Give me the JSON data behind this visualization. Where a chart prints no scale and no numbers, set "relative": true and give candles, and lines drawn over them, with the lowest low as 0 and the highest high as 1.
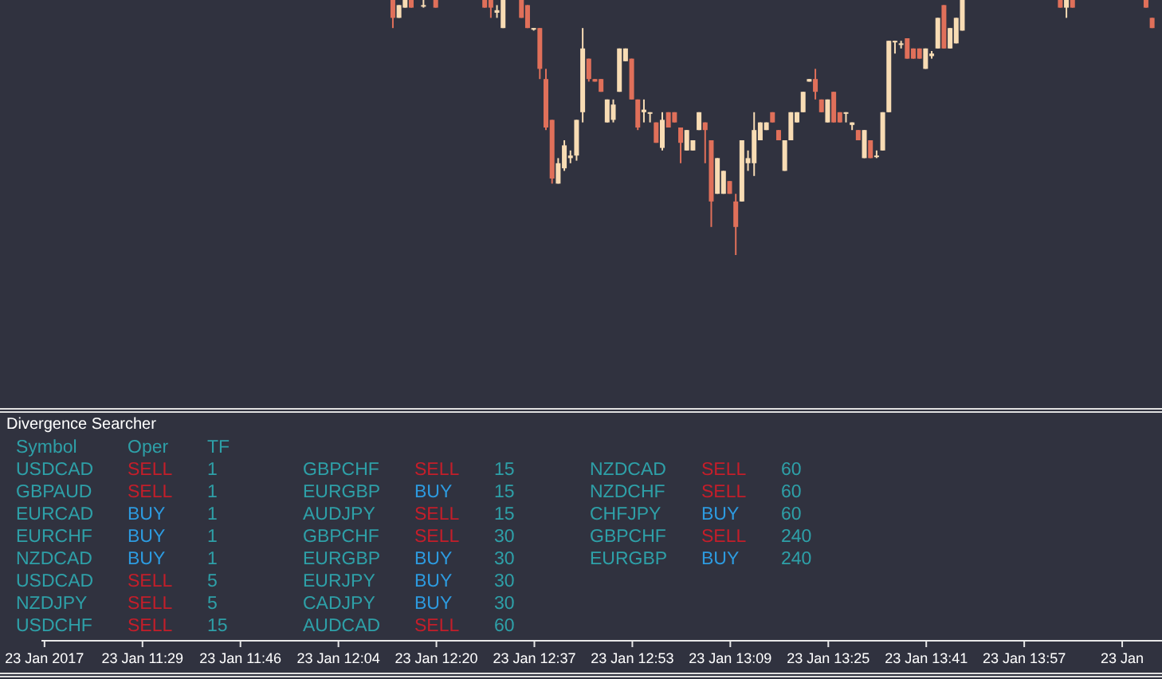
{
  "chart_data": [
    {
      "type": "candlestick",
      "relative": true,
      "categories": [
        "23 Jan 2017",
        null,
        null,
        null,
        null,
        null,
        null,
        null,
        null,
        null,
        null,
        null,
        null,
        null,
        null,
        null,
        "23 Jan 11:29",
        null,
        null,
        null,
        null,
        null,
        null,
        null,
        null,
        null,
        null,
        null,
        null,
        null,
        null,
        null,
        "23 Jan 11:46",
        null,
        null,
        null,
        null,
        null,
        null,
        null,
        null,
        null,
        null,
        null,
        null,
        null,
        null,
        null,
        "23 Jan 12:04",
        null,
        null,
        null,
        null,
        null,
        null,
        null,
        null,
        null,
        null,
        null,
        null,
        null,
        null,
        null,
        "23 Jan 12:20",
        null,
        null,
        null,
        null,
        null,
        null,
        null,
        null,
        null,
        null,
        null,
        null,
        null,
        null,
        null,
        "23 Jan 12:37",
        null,
        null,
        null,
        null,
        null,
        null,
        null,
        null,
        null,
        null,
        null,
        null,
        null,
        null,
        null,
        "23 Jan 12:53",
        null,
        null,
        null,
        null,
        null,
        null,
        null,
        null,
        null,
        null,
        null,
        null,
        null,
        null,
        null,
        "23 Jan 13:09",
        null,
        null,
        null,
        null,
        null,
        null,
        null,
        null,
        null,
        null,
        null,
        null,
        null,
        null,
        null,
        "23 Jan 13:25",
        null,
        null,
        null,
        null,
        null,
        null,
        null,
        null,
        null,
        null,
        null,
        null,
        null,
        null,
        null,
        "23 Jan 13:41",
        null,
        null,
        null,
        null,
        null,
        null,
        null,
        null,
        null,
        null,
        null,
        null,
        null,
        null,
        null,
        "23 Jan 13:57",
        null,
        null,
        null,
        null,
        null,
        null,
        null,
        null,
        null,
        null,
        null,
        null,
        null,
        null,
        null,
        "23 Jan",
        null,
        null,
        null,
        null,
        null,
        null
      ],
      "ohlc": [
        null,
        null,
        null,
        null,
        null,
        null,
        null,
        null,
        null,
        null,
        null,
        null,
        null,
        null,
        null,
        null,
        null,
        null,
        null,
        null,
        null,
        null,
        null,
        null,
        null,
        null,
        null,
        null,
        null,
        null,
        null,
        null,
        null,
        null,
        null,
        null,
        null,
        null,
        null,
        null,
        null,
        null,
        null,
        null,
        null,
        null,
        null,
        null,
        null,
        null,
        null,
        null,
        null,
        null,
        null,
        null,
        null,
        [
          1,
          1,
          0.89,
          0.93
        ],
        [
          0.93,
          0.98,
          0.93,
          0.98
        ],
        [
          0.97,
          1,
          0.97,
          1
        ],
        [
          1,
          1,
          0.97,
          0.97
        ],
        null,
        [
          0.98,
          1,
          0.97,
          0.98
        ],
        null,
        [
          1,
          1,
          0.97,
          0.97
        ],
        null,
        null,
        null,
        null,
        null,
        null,
        null,
        [
          1,
          1,
          0.97,
          0.97
        ],
        [
          1,
          1,
          0.93,
          0.97
        ],
        [
          0.95,
          0.98,
          0.93,
          0.96
        ],
        [
          0.89,
          1,
          0.89,
          1
        ],
        null,
        null,
        [
          1,
          1,
          0.93,
          0.93
        ],
        [
          0.98,
          0.98,
          0.89,
          0.89
        ],
        [
          0.89,
          0.89,
          0.88,
          0.89
        ],
        [
          0.89,
          0.89,
          0.69,
          0.73
        ],
        [
          0.69,
          0.73,
          0.49,
          0.5
        ],
        [
          0.53,
          0.53,
          0.28,
          0.3
        ],
        [
          0.28,
          0.38,
          0.28,
          0.36
        ],
        [
          0.34,
          0.45,
          0.33,
          0.43
        ],
        [
          0.38,
          0.41,
          0.36,
          0.39
        ],
        [
          0.39,
          0.53,
          0.37,
          0.53
        ],
        [
          0.56,
          0.89,
          0.52,
          0.81
        ],
        [
          0.77,
          0.77,
          0.68,
          0.69
        ],
        [
          0.69,
          0.69,
          0.68,
          0.68
        ],
        [
          0.69,
          0.69,
          0.64,
          0.64
        ],
        [
          0.52,
          0.61,
          0.52,
          0.61
        ],
        [
          0.53,
          0.61,
          0.52,
          0.59
        ],
        [
          0.64,
          0.81,
          0.64,
          0.81
        ],
        [
          0.76,
          0.81,
          0.76,
          0.81
        ],
        [
          0.77,
          0.77,
          0.61,
          0.61
        ],
        [
          0.61,
          0.61,
          0.49,
          0.5
        ],
        [
          0.56,
          0.61,
          0.52,
          0.57
        ],
        [
          0.56,
          0.56,
          0.52,
          0.56
        ],
        [
          0.52,
          0.52,
          0.44,
          0.44
        ],
        [
          0.42,
          0.56,
          0.41,
          0.53
        ],
        [
          0.56,
          0.56,
          0.5,
          0.5
        ],
        [
          0.56,
          0.56,
          0.52,
          0.52
        ],
        [
          0.5,
          0.5,
          0.36,
          0.44
        ],
        [
          0.41,
          0.49,
          0.41,
          0.49
        ],
        [
          0.41,
          0.45,
          0.41,
          0.45
        ],
        [
          0.49,
          0.56,
          0.49,
          0.56
        ],
        [
          0.52,
          0.52,
          0.36,
          0.49
        ],
        [
          0.45,
          0.45,
          0.11,
          0.21
        ],
        [
          0.24,
          0.38,
          0.24,
          0.38
        ],
        [
          0.24,
          0.33,
          0.24,
          0.33
        ],
        [
          0.29,
          0.29,
          0.24,
          0.24
        ],
        [
          0.21,
          0.24,
          0,
          0.11
        ],
        [
          0.21,
          0.45,
          0.21,
          0.45
        ],
        [
          0.36,
          0.41,
          0.33,
          0.38
        ],
        [
          0.36,
          0.56,
          0.31,
          0.49
        ],
        [
          0.45,
          0.52,
          0.45,
          0.52
        ],
        [
          0.49,
          0.52,
          0.49,
          0.52
        ],
        [
          0.56,
          0.56,
          0.52,
          0.52
        ],
        [
          0.49,
          0.49,
          0.45,
          0.45
        ],
        [
          0.33,
          0.45,
          0.33,
          0.45
        ],
        [
          0.45,
          0.56,
          0.45,
          0.56
        ],
        [
          0.52,
          0.56,
          0.52,
          0.56
        ],
        [
          0.56,
          0.64,
          0.56,
          0.64
        ],
        [
          0.68,
          0.69,
          0.68,
          0.69
        ],
        [
          0.69,
          0.73,
          0.61,
          0.64
        ],
        [
          0.61,
          0.61,
          0.56,
          0.56
        ],
        [
          0.52,
          0.61,
          0.52,
          0.61
        ],
        [
          0.64,
          0.64,
          0.52,
          0.52
        ],
        [
          0.56,
          0.56,
          0.52,
          0.52
        ],
        [
          0.56,
          0.56,
          0.52,
          0.56
        ],
        [
          0.51,
          0.52,
          0.49,
          0.52
        ],
        [
          0.49,
          0.49,
          0.45,
          0.45
        ],
        [
          0.38,
          0.49,
          0.38,
          0.49
        ],
        [
          0.45,
          0.45,
          0.38,
          0.38
        ],
        [
          0.39,
          0.41,
          0.38,
          0.39
        ],
        [
          0.41,
          0.56,
          0.41,
          0.56
        ],
        [
          0.56,
          0.84,
          0.56,
          0.84
        ],
        [
          0.84,
          0.84,
          0.79,
          0.84
        ],
        [
          0.83,
          0.84,
          0.81,
          0.83
        ],
        [
          0.85,
          0.85,
          0.77,
          0.77
        ],
        [
          0.81,
          0.81,
          0.77,
          0.77
        ],
        [
          0.81,
          0.81,
          0.77,
          0.77
        ],
        [
          0.73,
          0.81,
          0.73,
          0.81
        ],
        [
          0.78,
          0.8,
          0.77,
          0.79
        ],
        [
          0.81,
          0.93,
          0.81,
          0.93
        ],
        [
          0.98,
          0.98,
          0.81,
          0.81
        ],
        [
          0.81,
          0.89,
          0.81,
          0.89
        ],
        [
          0.83,
          0.93,
          0.83,
          0.93
        ],
        [
          0.88,
          1,
          0.88,
          1
        ],
        null,
        null,
        null,
        null,
        null,
        null,
        null,
        null,
        null,
        null,
        null,
        null,
        null,
        null,
        null,
        [
          1,
          1,
          0.97,
          0.97
        ],
        [
          0.97,
          1,
          0.93,
          1
        ],
        [
          1,
          1,
          0.97,
          0.97
        ],
        null,
        null,
        null,
        null,
        null,
        null,
        null,
        null,
        null,
        null,
        null,
        [
          1,
          1,
          0.97,
          0.97
        ],
        [
          0.93,
          0.93,
          0.89,
          0.89
        ],
        null
      ],
      "colors": [
        null,
        null,
        null,
        null,
        null,
        null,
        null,
        null,
        null,
        null,
        null,
        null,
        null,
        null,
        null,
        null,
        null,
        null,
        null,
        null,
        null,
        null,
        null,
        null,
        null,
        null,
        null,
        null,
        null,
        null,
        null,
        null,
        null,
        null,
        null,
        null,
        null,
        null,
        null,
        null,
        null,
        null,
        null,
        null,
        null,
        null,
        null,
        null,
        null,
        null,
        null,
        null,
        null,
        null,
        null,
        null,
        null,
        "#e0705a",
        "#f8dcb4",
        "#f8dcb4",
        "#e0705a",
        null,
        "#f8dcb4",
        null,
        "#e0705a",
        null,
        null,
        null,
        null,
        null,
        null,
        null,
        "#e0705a",
        "#e0705a",
        "#f8dcb4",
        "#f8dcb4",
        null,
        null,
        "#e0705a",
        "#e0705a",
        "#f8dcb4",
        "#e0705a",
        "#e0705a",
        "#e0705a",
        "#f8dcb4",
        "#f8dcb4",
        "#f8dcb4",
        "#f8dcb4",
        "#f8dcb4",
        "#e0705a",
        "#e0705a",
        "#e0705a",
        "#f8dcb4",
        "#f8dcb4",
        "#f8dcb4",
        "#f8dcb4",
        "#e0705a",
        "#e0705a",
        "#f8dcb4",
        "#f8dcb4",
        "#e0705a",
        "#f8dcb4",
        "#e0705a",
        "#e0705a",
        "#e0705a",
        "#f8dcb4",
        "#f8dcb4",
        "#f8dcb4",
        "#e0705a",
        "#e0705a",
        "#f8dcb4",
        "#f8dcb4",
        "#e0705a",
        "#e0705a",
        "#f8dcb4",
        "#f8dcb4",
        "#f8dcb4",
        "#f8dcb4",
        "#f8dcb4",
        "#e0705a",
        "#e0705a",
        "#f8dcb4",
        "#f8dcb4",
        "#f8dcb4",
        "#f8dcb4",
        "#f8dcb4",
        "#e0705a",
        "#e0705a",
        "#f8dcb4",
        "#e0705a",
        "#e0705a",
        "#f8dcb4",
        "#f8dcb4",
        "#e0705a",
        "#f8dcb4",
        "#e0705a",
        "#f8dcb4",
        "#f8dcb4",
        "#f8dcb4",
        "#f8dcb4",
        "#f8dcb4",
        "#e0705a",
        "#e0705a",
        "#e0705a",
        "#f8dcb4",
        "#f8dcb4",
        "#f8dcb4",
        "#e0705a",
        "#f8dcb4",
        "#f8dcb4",
        "#f8dcb4",
        null,
        null,
        null,
        null,
        null,
        null,
        null,
        null,
        null,
        null,
        null,
        null,
        null,
        null,
        null,
        "#e0705a",
        "#f8dcb4",
        "#e0705a",
        null,
        null,
        null,
        null,
        null,
        null,
        null,
        null,
        null,
        null,
        null,
        "#e0705a",
        "#e0705a",
        null
      ]
    },
    {
      "type": "other",
      "title": "Divergence Searcher",
      "annotations": [
        "Symbol",
        "Oper",
        "TF",
        "USDCAD",
        "SELL",
        "1",
        "GBPAUD",
        "SELL",
        "1",
        "EURCAD",
        "BUY",
        "1",
        "EURCHF",
        "BUY",
        "1",
        "NZDCAD",
        "BUY",
        "1",
        "USDCAD",
        "SELL",
        "5",
        "NZDJPY",
        "SELL",
        "5",
        "USDCHF",
        "SELL",
        "15",
        "GBPCHF",
        "SELL",
        "15",
        "EURGBP",
        "BUY",
        "15",
        "AUDJPY",
        "SELL",
        "15",
        "GBPCHF",
        "SELL",
        "30",
        "EURGBP",
        "BUY",
        "30",
        "EURJPY",
        "BUY",
        "30",
        "CADJPY",
        "BUY",
        "30",
        "AUDCAD",
        "SELL",
        "60",
        "NZDCAD",
        "SELL",
        "60",
        "NZDCHF",
        "SELL",
        "60",
        "CHFJPY",
        "BUY",
        "60",
        "GBPCHF",
        "SELL",
        "240",
        "EURGBP",
        "BUY",
        "240"
      ],
      "colors": [
        "#2ea0a8",
        "#2ea0a8",
        "#2ea0a8",
        "#2ea0a8",
        "#c41e2a",
        "#2ea0a8",
        "#2ea0a8",
        "#c41e2a",
        "#2ea0a8",
        "#2ea0a8",
        "#2d9be0",
        "#2ea0a8",
        "#2ea0a8",
        "#2d9be0",
        "#2ea0a8",
        "#2ea0a8",
        "#2d9be0",
        "#2ea0a8",
        "#2ea0a8",
        "#c41e2a",
        "#2ea0a8",
        "#2ea0a8",
        "#c41e2a",
        "#2ea0a8",
        "#2ea0a8",
        "#c41e2a",
        "#2ea0a8",
        "#2ea0a8",
        "#c41e2a",
        "#2ea0a8",
        "#2ea0a8",
        "#2d9be0",
        "#2ea0a8",
        "#2ea0a8",
        "#c41e2a",
        "#2ea0a8",
        "#2ea0a8",
        "#c41e2a",
        "#2ea0a8",
        "#2ea0a8",
        "#2d9be0",
        "#2ea0a8",
        "#2ea0a8",
        "#2d9be0",
        "#2ea0a8",
        "#2ea0a8",
        "#2d9be0",
        "#2ea0a8",
        "#2ea0a8",
        "#c41e2a",
        "#2ea0a8",
        "#2ea0a8",
        "#c41e2a",
        "#2ea0a8",
        "#2ea0a8",
        "#c41e2a",
        "#2ea0a8",
        "#2ea0a8",
        "#2d9be0",
        "#2ea0a8",
        "#2ea0a8",
        "#c41e2a",
        "#2ea0a8",
        "#2ea0a8",
        "#2d9be0",
        "#2ea0a8"
      ]
    }
  ]
}
